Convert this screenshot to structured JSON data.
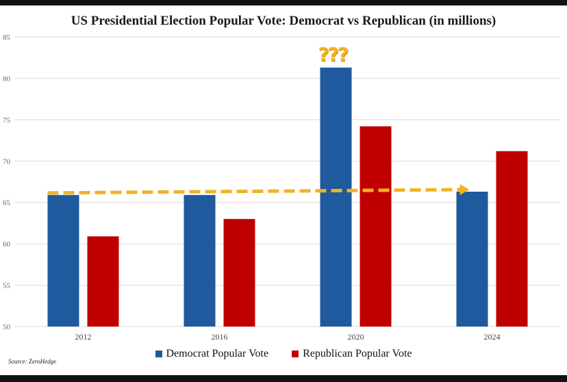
{
  "chart_data": {
    "type": "bar",
    "title": "US Presidential Election Popular Vote: Democrat vs Republican (in millions)",
    "categories": [
      "2012",
      "2016",
      "2020",
      "2024"
    ],
    "series": [
      {
        "name": "Democrat Popular Vote",
        "color": "#1f5a9e",
        "values": [
          65.9,
          65.9,
          81.3,
          66.3
        ]
      },
      {
        "name": "Republican Popular Vote",
        "color": "#c00000",
        "values": [
          60.9,
          63.0,
          74.2,
          71.2
        ]
      }
    ],
    "ylim": [
      50,
      85
    ],
    "yticks": [
      50,
      55,
      60,
      65,
      70,
      75,
      80,
      85
    ],
    "grid": true,
    "legend_position": "bottom",
    "annotations": {
      "question_marks": "???",
      "question_marks_color": "#f0b323",
      "trend_arrow_color": "#f0b323",
      "trend_arrow_from": {
        "x": "2012",
        "y": 65.9
      },
      "trend_arrow_to": {
        "x": "2024",
        "y": 66.3
      }
    }
  },
  "source": "Source: ZeroHedge"
}
